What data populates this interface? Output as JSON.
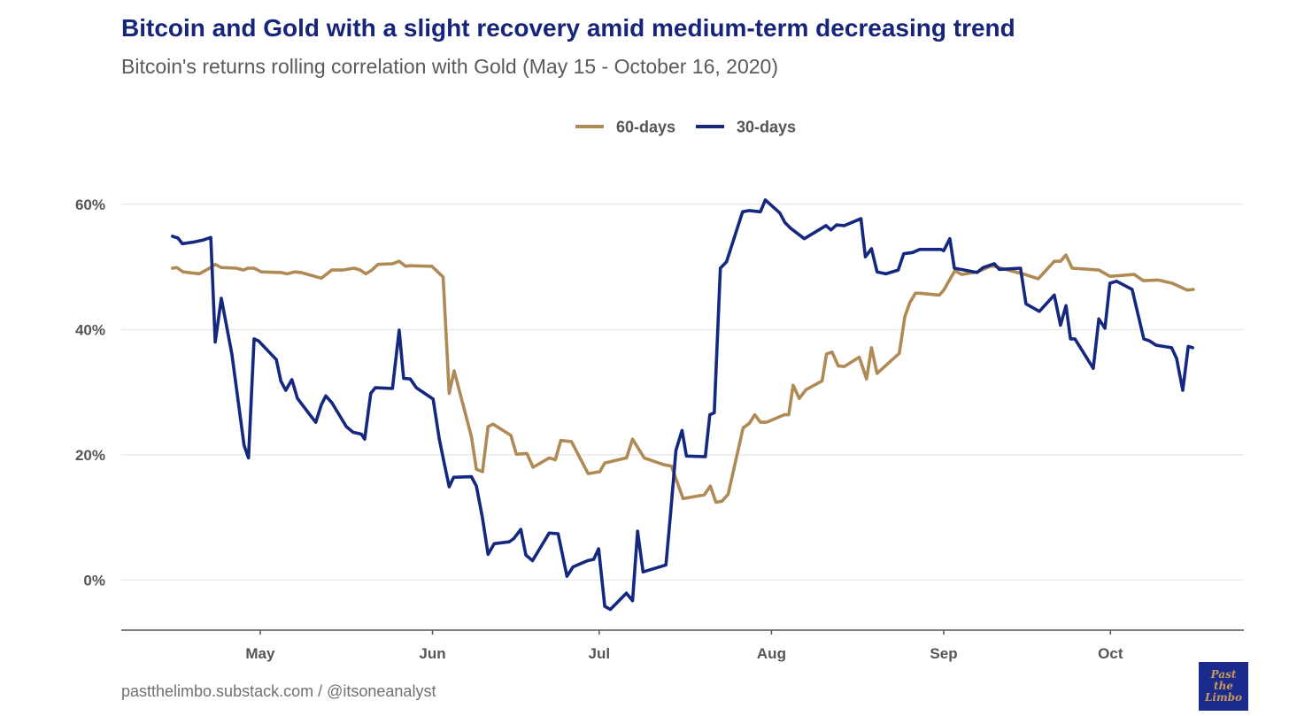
{
  "chart_data": {
    "type": "line",
    "title": "Bitcoin and Gold with a slight recovery amid medium-term decreasing trend",
    "subtitle": "Bitcoin's returns rolling correlation with Gold (May 15 - October 16, 2020)",
    "xlabel": "",
    "ylabel": "",
    "x_unit": "day of year 2020",
    "xlim": [
      97,
      299
    ],
    "ylim": [
      -8,
      64
    ],
    "grid": true,
    "legend_position": "top-center",
    "x_ticks": [
      {
        "value": 122,
        "label": "May"
      },
      {
        "value": 153,
        "label": "Jun"
      },
      {
        "value": 183,
        "label": "Jul"
      },
      {
        "value": 214,
        "label": "Aug"
      },
      {
        "value": 245,
        "label": "Sep"
      },
      {
        "value": 275,
        "label": "Oct"
      }
    ],
    "y_ticks": [
      {
        "value": 0,
        "label": "0%"
      },
      {
        "value": 20,
        "label": "20%"
      },
      {
        "value": 40,
        "label": "40%"
      },
      {
        "value": 60,
        "label": "60%"
      }
    ],
    "series": [
      {
        "name": "60-days",
        "color": "#b08a55",
        "points": [
          [
            106.2,
            49.8
          ],
          [
            107.0,
            49.9
          ],
          [
            108.1,
            49.2
          ],
          [
            111.0,
            48.9
          ],
          [
            112.9,
            49.8
          ],
          [
            113.9,
            50.4
          ],
          [
            115.0,
            49.9
          ],
          [
            117.7,
            49.8
          ],
          [
            119.0,
            49.5
          ],
          [
            119.8,
            49.8
          ],
          [
            120.9,
            49.8
          ],
          [
            122.2,
            49.2
          ],
          [
            125.7,
            49.1
          ],
          [
            126.9,
            48.9
          ],
          [
            128.2,
            49.2
          ],
          [
            129.3,
            49.1
          ],
          [
            133.0,
            48.2
          ],
          [
            134.9,
            49.5
          ],
          [
            136.8,
            49.5
          ],
          [
            138.9,
            49.8
          ],
          [
            140.0,
            49.5
          ],
          [
            141.0,
            48.9
          ],
          [
            142.1,
            49.5
          ],
          [
            143.2,
            50.4
          ],
          [
            145.8,
            50.5
          ],
          [
            147.0,
            50.9
          ],
          [
            148.2,
            50.1
          ],
          [
            149.0,
            50.2
          ],
          [
            152.9,
            50.1
          ],
          [
            154.9,
            48.4
          ],
          [
            155.3,
            41.7
          ],
          [
            156.0,
            29.8
          ],
          [
            156.9,
            33.4
          ],
          [
            160.0,
            22.9
          ],
          [
            160.9,
            17.7
          ],
          [
            162.0,
            17.3
          ],
          [
            163.0,
            24.5
          ],
          [
            163.9,
            24.9
          ],
          [
            167.1,
            23.1
          ],
          [
            168.1,
            20.1
          ],
          [
            170.0,
            20.2
          ],
          [
            171.1,
            18.0
          ],
          [
            174.0,
            19.5
          ],
          [
            175.1,
            19.2
          ],
          [
            176.1,
            22.3
          ],
          [
            178.0,
            22.1
          ],
          [
            181.0,
            17.0
          ],
          [
            183.1,
            17.3
          ],
          [
            184.0,
            18.7
          ],
          [
            187.9,
            19.5
          ],
          [
            189.0,
            22.5
          ],
          [
            191.1,
            19.5
          ],
          [
            194.7,
            18.4
          ],
          [
            196.0,
            18.2
          ],
          [
            198.1,
            13.0
          ],
          [
            201.9,
            13.6
          ],
          [
            203.0,
            15.0
          ],
          [
            204.0,
            12.4
          ],
          [
            205.1,
            12.6
          ],
          [
            206.2,
            13.7
          ],
          [
            208.9,
            24.3
          ],
          [
            210.0,
            25.0
          ],
          [
            211.0,
            26.4
          ],
          [
            212.0,
            25.2
          ],
          [
            213.1,
            25.2
          ],
          [
            216.3,
            26.4
          ],
          [
            217.1,
            26.4
          ],
          [
            217.9,
            31.1
          ],
          [
            219.0,
            29.0
          ],
          [
            220.2,
            30.4
          ],
          [
            223.1,
            31.8
          ],
          [
            223.9,
            36.1
          ],
          [
            224.9,
            36.4
          ],
          [
            226.0,
            34.2
          ],
          [
            227.1,
            34.1
          ],
          [
            229.8,
            35.6
          ],
          [
            231.1,
            32.1
          ],
          [
            232.0,
            37.1
          ],
          [
            233.0,
            33.0
          ],
          [
            237.0,
            36.2
          ],
          [
            238.0,
            42.1
          ],
          [
            238.9,
            44.3
          ],
          [
            239.9,
            45.8
          ],
          [
            240.7,
            45.8
          ],
          [
            244.2,
            45.5
          ],
          [
            245.0,
            46.3
          ],
          [
            247.0,
            49.4
          ],
          [
            248.2,
            48.8
          ],
          [
            251.0,
            49.2
          ],
          [
            253.7,
            50.2
          ],
          [
            255.3,
            49.8
          ],
          [
            259.6,
            48.8
          ],
          [
            262.0,
            48.1
          ],
          [
            264.9,
            50.9
          ],
          [
            266.0,
            50.9
          ],
          [
            267.0,
            51.9
          ],
          [
            268.1,
            49.8
          ],
          [
            272.9,
            49.5
          ],
          [
            274.9,
            48.5
          ],
          [
            279.3,
            48.8
          ],
          [
            280.9,
            47.8
          ],
          [
            283.6,
            47.9
          ],
          [
            286.1,
            47.4
          ],
          [
            288.8,
            46.3
          ],
          [
            289.9,
            46.4
          ]
        ]
      },
      {
        "name": "30-days",
        "color": "#15287f",
        "points": [
          [
            106.2,
            54.9
          ],
          [
            107.2,
            54.6
          ],
          [
            108.0,
            53.7
          ],
          [
            110.2,
            54.0
          ],
          [
            111.8,
            54.3
          ],
          [
            113.1,
            54.7
          ],
          [
            113.9,
            38.0
          ],
          [
            115.0,
            45.0
          ],
          [
            116.9,
            36.1
          ],
          [
            119.1,
            21.5
          ],
          [
            119.9,
            19.5
          ],
          [
            120.9,
            38.5
          ],
          [
            121.7,
            38.2
          ],
          [
            123.6,
            36.4
          ],
          [
            124.9,
            35.2
          ],
          [
            125.7,
            31.8
          ],
          [
            126.6,
            30.3
          ],
          [
            127.7,
            32.0
          ],
          [
            128.7,
            29.0
          ],
          [
            131.1,
            26.2
          ],
          [
            132.0,
            25.2
          ],
          [
            133.0,
            28.0
          ],
          [
            133.8,
            29.4
          ],
          [
            134.9,
            28.3
          ],
          [
            137.5,
            24.5
          ],
          [
            138.7,
            23.6
          ],
          [
            140.2,
            23.3
          ],
          [
            140.8,
            22.5
          ],
          [
            141.9,
            29.8
          ],
          [
            142.7,
            30.7
          ],
          [
            145.8,
            30.6
          ],
          [
            147.0,
            39.9
          ],
          [
            147.8,
            32.2
          ],
          [
            149.0,
            32.1
          ],
          [
            150.1,
            30.7
          ],
          [
            153.1,
            28.9
          ],
          [
            154.2,
            22.6
          ],
          [
            155.0,
            19.1
          ],
          [
            156.0,
            14.9
          ],
          [
            156.8,
            16.4
          ],
          [
            160.0,
            16.5
          ],
          [
            160.9,
            15.0
          ],
          [
            162.0,
            9.9
          ],
          [
            163.0,
            4.1
          ],
          [
            164.1,
            5.8
          ],
          [
            166.8,
            6.1
          ],
          [
            167.6,
            6.6
          ],
          [
            168.9,
            8.1
          ],
          [
            169.8,
            4.0
          ],
          [
            171.0,
            3.1
          ],
          [
            174.0,
            7.5
          ],
          [
            175.6,
            7.4
          ],
          [
            177.2,
            0.6
          ],
          [
            178.3,
            2.1
          ],
          [
            180.9,
            3.1
          ],
          [
            182.0,
            3.3
          ],
          [
            182.9,
            5.0
          ],
          [
            184.0,
            -4.2
          ],
          [
            185.0,
            -4.7
          ],
          [
            187.9,
            -2.1
          ],
          [
            189.0,
            -3.3
          ],
          [
            189.9,
            7.8
          ],
          [
            190.9,
            1.3
          ],
          [
            195.0,
            2.4
          ],
          [
            195.8,
            10.2
          ],
          [
            196.8,
            20.7
          ],
          [
            197.9,
            23.9
          ],
          [
            198.7,
            19.8
          ],
          [
            202.1,
            19.7
          ],
          [
            202.9,
            26.4
          ],
          [
            203.7,
            26.7
          ],
          [
            204.8,
            49.8
          ],
          [
            205.9,
            50.8
          ],
          [
            208.8,
            58.8
          ],
          [
            210.0,
            59.0
          ],
          [
            212.0,
            58.8
          ],
          [
            212.9,
            60.7
          ],
          [
            215.5,
            58.6
          ],
          [
            216.4,
            57.1
          ],
          [
            217.4,
            56.2
          ],
          [
            219.9,
            54.5
          ],
          [
            223.8,
            56.6
          ],
          [
            224.7,
            55.9
          ],
          [
            225.7,
            56.7
          ],
          [
            227.1,
            56.6
          ],
          [
            230.1,
            57.7
          ],
          [
            230.9,
            51.6
          ],
          [
            232.0,
            52.9
          ],
          [
            233.0,
            49.2
          ],
          [
            234.6,
            48.9
          ],
          [
            236.8,
            49.5
          ],
          [
            237.8,
            52.1
          ],
          [
            239.4,
            52.3
          ],
          [
            240.7,
            52.8
          ],
          [
            244.5,
            52.8
          ],
          [
            245.0,
            52.6
          ],
          [
            246.1,
            54.5
          ],
          [
            246.9,
            49.8
          ],
          [
            251.0,
            49.1
          ],
          [
            252.1,
            49.9
          ],
          [
            254.1,
            50.5
          ],
          [
            255.0,
            49.6
          ],
          [
            258.8,
            49.8
          ],
          [
            259.8,
            44.1
          ],
          [
            262.2,
            42.9
          ],
          [
            264.9,
            45.5
          ],
          [
            266.0,
            40.7
          ],
          [
            267.0,
            43.8
          ],
          [
            267.8,
            38.5
          ],
          [
            268.6,
            38.5
          ],
          [
            271.9,
            33.8
          ],
          [
            272.9,
            41.7
          ],
          [
            274.0,
            40.2
          ],
          [
            274.9,
            47.4
          ],
          [
            276.1,
            47.7
          ],
          [
            278.9,
            46.4
          ],
          [
            281.0,
            38.5
          ],
          [
            282.0,
            38.2
          ],
          [
            283.2,
            37.5
          ],
          [
            286.0,
            37.1
          ],
          [
            286.9,
            35.4
          ],
          [
            288.0,
            30.3
          ],
          [
            289.0,
            37.3
          ],
          [
            289.8,
            37.1
          ]
        ]
      }
    ]
  },
  "footer": "pastthelimbo.substack.com / @itsoneanalyst",
  "logo_text": [
    "Past",
    "the",
    "Limbo"
  ]
}
